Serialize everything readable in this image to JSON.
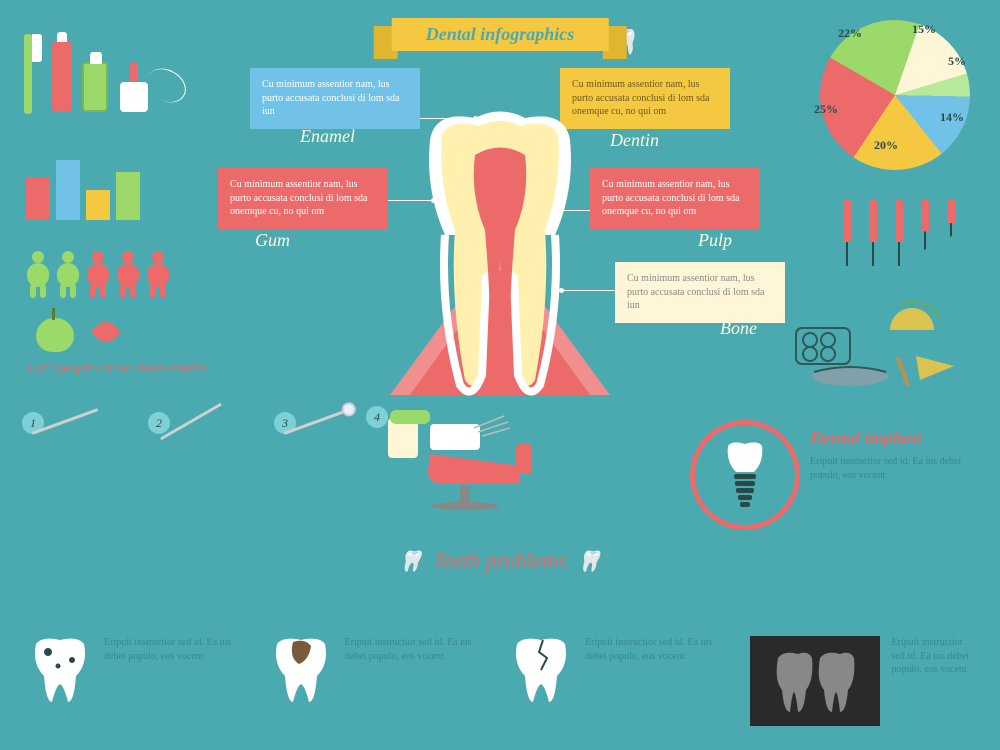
{
  "title": "Dental infographics",
  "colors": {
    "bg": "#4aaab0",
    "accent": "#ec6a6a",
    "yellow": "#f5c842",
    "paleyellow": "#fff6d8",
    "green": "#9ad96a",
    "blue": "#71c2e6",
    "cream": "#fffbe0",
    "dark": "#2a4a4a"
  },
  "callouts": {
    "enamel": {
      "label": "Enamel",
      "text": "Cu minimum assentior nam, lus purto accusata conclusi di lom sda iun",
      "bg": "#71c2e6"
    },
    "dentin": {
      "label": "Dentin",
      "text": "Cu minimum assentior nam, lus purto accusata conclusi di lom sda onemque cu, no qui om",
      "bg": "#f5c842"
    },
    "gum": {
      "label": "Gum",
      "text": "Cu minimum assentior nam, lus purto accusata conclusi di lom sda onemque cu, no qui om",
      "bg": "#ec6a6a"
    },
    "pulp": {
      "label": "Pulp",
      "text": "Cu minimum assentior nam, lus purto accusata conclusi di lom sda onemque cu, no qui om",
      "bg": "#ec6a6a"
    },
    "bone": {
      "label": "Bone",
      "text": "Cu minimum assentior nam, lus purto accusata conclusi di lom sda iun",
      "bg": "#fff6d8",
      "textcolor": "#888"
    }
  },
  "minibars": {
    "heights": [
      42,
      60,
      30,
      48
    ],
    "colors": [
      "#ec6a6a",
      "#71c2e6",
      "#f5c842",
      "#9ad96a"
    ]
  },
  "people": {
    "count": 5,
    "colors": [
      "#9ad96a",
      "#9ad96a",
      "#ec6a6a",
      "#ec6a6a",
      "#ec6a6a"
    ],
    "caption": "3 of 5 people eat too much candies"
  },
  "pie": {
    "slices": [
      {
        "label": "22%",
        "value": 22,
        "color": "#9ad96a"
      },
      {
        "label": "15%",
        "value": 15,
        "color": "#fff6d8"
      },
      {
        "label": "5%",
        "value": 5,
        "color": "#b8e89a"
      },
      {
        "label": "14%",
        "value": 14,
        "color": "#71c2e6"
      },
      {
        "label": "20%",
        "value": 20,
        "color": "#f5c842"
      },
      {
        "label": "25%",
        "value": 25,
        "color": "#ec6a6a"
      }
    ]
  },
  "syringes": {
    "count": 5,
    "heights": [
      1,
      1,
      1,
      0.75,
      0.55
    ]
  },
  "tools": {
    "labels": [
      "1",
      "2",
      "3",
      "4"
    ]
  },
  "implant": {
    "title": "Dental implant",
    "text": "Eripuit instructior sed id. Ea ius debet populo, eos vocent"
  },
  "problems": {
    "heading": "Teeth problems",
    "items": [
      {
        "text": "Eripuit instructior sed id. Ea ius debet populo, eos vocent"
      },
      {
        "text": "Eripuit instructior sed id. Ea ius debet populo, eos vocent"
      },
      {
        "text": "Eripuit instructior sed id. Ea ius debet populo, eos vocent"
      },
      {
        "text": "Eripuit instructior sed id. Ea ius debet populo, eos vocent"
      }
    ]
  }
}
